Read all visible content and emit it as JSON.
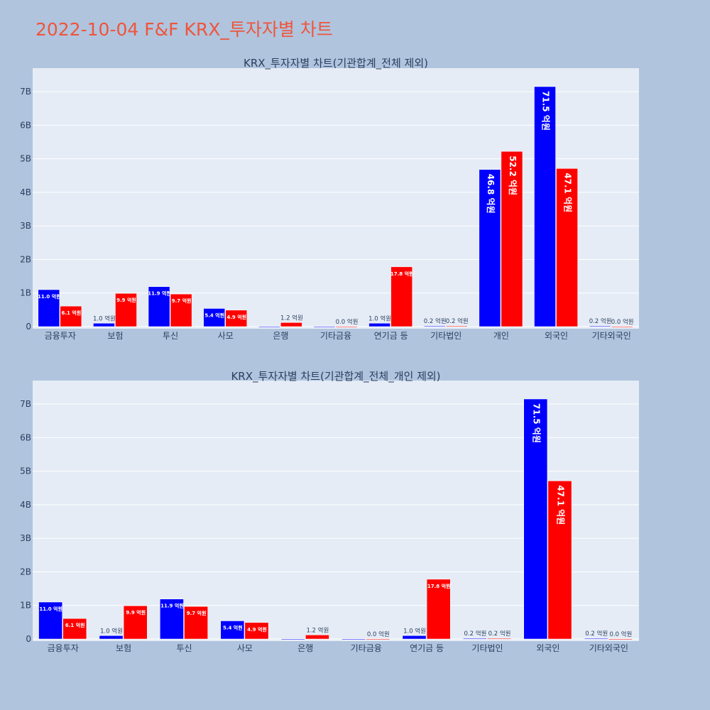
{
  "title": "2022-10-04 F&F KRX_투자자별 차트",
  "colors": {
    "series_a": "#0000FF",
    "series_b": "#FF0000",
    "plot_bg": "#E5ECF6",
    "paper_bg": "#B0C4DE",
    "title": "#EF553B"
  },
  "chart_data": [
    {
      "type": "bar",
      "title": "KRX_투자자별 차트(기관합계_전체 제외)",
      "categories": [
        "금융투자",
        "보험",
        "투신",
        "사모",
        "은행",
        "기타금융",
        "연기금 등",
        "기타법인",
        "개인",
        "외국인",
        "기타외국인"
      ],
      "series": [
        {
          "values": [
            1100000000.0,
            100000000.0,
            1190000000.0,
            540000000.0,
            0.0,
            0.0,
            100000000.0,
            20000000.0,
            4680000000.0,
            7150000000.0,
            20000000.0
          ],
          "labels": [
            "11.0 억원",
            "1.0 억원",
            "11.9 억원",
            "5.4 억원",
            "",
            "",
            "1.0 억원",
            "0.2 억원",
            "46.8 억원",
            "71.5 억원",
            "0.2 억원"
          ]
        },
        {
          "values": [
            610000000.0,
            990000000.0,
            970000000.0,
            490000000.0,
            120000000.0,
            0.0,
            1780000000.0,
            20000000.0,
            5220000000.0,
            4710000000.0,
            0.0
          ],
          "labels": [
            "6.1 억원",
            "9.9 억원",
            "9.7 억원",
            "4.9 억원",
            "1.2 억원",
            "0.0 억원",
            "17.8 억원",
            "0.2 억원",
            "52.2 억원",
            "47.1 억원",
            "0.0 억원"
          ]
        }
      ],
      "yticks": [
        "0",
        "1B",
        "2B",
        "3B",
        "4B",
        "5B",
        "6B",
        "7B"
      ],
      "ylim": [
        0,
        7700000000.0
      ],
      "grid": true
    },
    {
      "type": "bar",
      "title": "KRX_투자자별 차트(기관합계_전체_개인 제외)",
      "categories": [
        "금융투자",
        "보험",
        "투신",
        "사모",
        "은행",
        "기타금융",
        "연기금 등",
        "기타법인",
        "외국인",
        "기타외국인"
      ],
      "series": [
        {
          "values": [
            1100000000.0,
            100000000.0,
            1190000000.0,
            540000000.0,
            0.0,
            0.0,
            100000000.0,
            20000000.0,
            7150000000.0,
            20000000.0
          ],
          "labels": [
            "11.0 억원",
            "1.0 억원",
            "11.9 억원",
            "5.4 억원",
            "",
            "",
            "1.0 억원",
            "0.2 억원",
            "71.5 억원",
            "0.2 억원"
          ]
        },
        {
          "values": [
            610000000.0,
            990000000.0,
            970000000.0,
            490000000.0,
            120000000.0,
            0.0,
            1780000000.0,
            20000000.0,
            4710000000.0,
            0.0
          ],
          "labels": [
            "6.1 억원",
            "9.9 억원",
            "9.7 억원",
            "4.9 억원",
            "1.2 억원",
            "0.0 억원",
            "17.8 억원",
            "0.2 억원",
            "47.1 억원",
            "0.0 억원"
          ]
        }
      ],
      "yticks": [
        "0",
        "1B",
        "2B",
        "3B",
        "4B",
        "5B",
        "6B",
        "7B"
      ],
      "ylim": [
        0,
        7700000000.0
      ],
      "grid": true
    }
  ]
}
